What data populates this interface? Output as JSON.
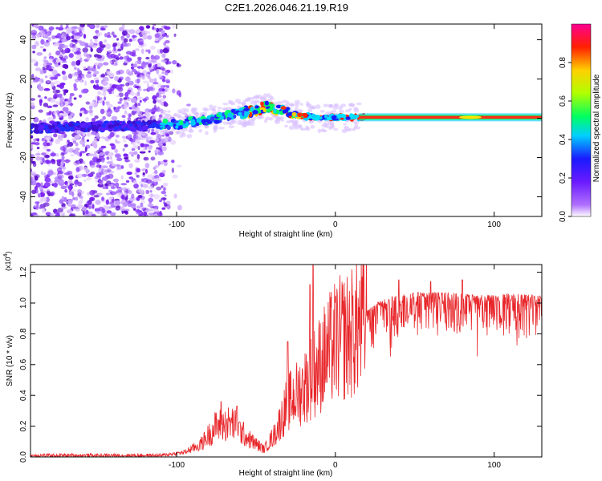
{
  "title": "C2E1.2026.046.21.19.R19",
  "chart_data": [
    {
      "type": "heatmap",
      "name": "spectrogram",
      "xlabel": "Height of straight line (km)",
      "ylabel": "Frequency (Hz)",
      "xlim": [
        -192,
        130
      ],
      "ylim": [
        -50,
        48
      ],
      "xticks": [
        -100,
        0,
        100
      ],
      "yticks": [
        -40,
        -20,
        0,
        20,
        40
      ],
      "colorbar": {
        "label": "Normalized spectral amplitude",
        "range": [
          0,
          1
        ],
        "ticks": [
          "0.0",
          "0.2",
          "0.4",
          "0.6",
          "0.8"
        ],
        "tick_values": [
          0,
          0.2,
          0.4,
          0.6,
          0.8
        ],
        "colors": [
          "#ffffff",
          "#9b30ff",
          "#1a1aff",
          "#00d0ff",
          "#00ff40",
          "#b0ff00",
          "#ffd000",
          "#ff2000",
          "#ff0090"
        ]
      },
      "ridge": [
        {
          "x": -192,
          "y": -5
        },
        {
          "x": -150,
          "y": -4
        },
        {
          "x": -120,
          "y": -4
        },
        {
          "x": -100,
          "y": -3
        },
        {
          "x": -80,
          "y": -1
        },
        {
          "x": -65,
          "y": 2
        },
        {
          "x": -50,
          "y": 4
        },
        {
          "x": -42,
          "y": 6
        },
        {
          "x": -35,
          "y": 4
        },
        {
          "x": -28,
          "y": 2
        },
        {
          "x": -20,
          "y": 1
        },
        {
          "x": -10,
          "y": 0.5
        },
        {
          "x": 0,
          "y": 0.5
        },
        {
          "x": 20,
          "y": 0.5
        },
        {
          "x": 130,
          "y": 0.5
        }
      ]
    },
    {
      "type": "line",
      "name": "snr",
      "xlabel": "Height of straight line (km)",
      "ylabel": "SNR (10 * v/v)",
      "yscale_label": "(x10",
      "yscale_exp": "4",
      "yscale_close": ")",
      "color": "#e8262a",
      "xlim": [
        -192,
        130
      ],
      "ylim": [
        0,
        1.25
      ],
      "xticks": [
        -100,
        0,
        100
      ],
      "yticks": [
        "0.0",
        "0.2",
        "0.4",
        "0.6",
        "0.8",
        "1.0",
        "1.2"
      ],
      "ytick_values": [
        0,
        0.2,
        0.4,
        0.6,
        0.8,
        1.0,
        1.2
      ],
      "envelope": [
        {
          "x": -192,
          "y": 0.01
        },
        {
          "x": -110,
          "y": 0.01
        },
        {
          "x": -95,
          "y": 0.03
        },
        {
          "x": -85,
          "y": 0.08
        },
        {
          "x": -75,
          "y": 0.2
        },
        {
          "x": -65,
          "y": 0.22
        },
        {
          "x": -55,
          "y": 0.12
        },
        {
          "x": -45,
          "y": 0.05
        },
        {
          "x": -38,
          "y": 0.15
        },
        {
          "x": -30,
          "y": 0.35
        },
        {
          "x": -20,
          "y": 0.45
        },
        {
          "x": -10,
          "y": 0.6
        },
        {
          "x": 0,
          "y": 0.75
        },
        {
          "x": 10,
          "y": 0.8
        },
        {
          "x": 20,
          "y": 0.9
        },
        {
          "x": 30,
          "y": 0.98
        },
        {
          "x": 50,
          "y": 1.02
        },
        {
          "x": 70,
          "y": 1.02
        },
        {
          "x": 90,
          "y": 1.0
        },
        {
          "x": 110,
          "y": 1.01
        },
        {
          "x": 130,
          "y": 1.0
        }
      ],
      "spikes": [
        {
          "x": -72,
          "y": 0.36
        },
        {
          "x": -62,
          "y": 0.33
        },
        {
          "x": -30,
          "y": 0.75
        },
        {
          "x": -16,
          "y": 1.12
        },
        {
          "x": -14,
          "y": 1.25
        },
        {
          "x": 40,
          "y": 1.15
        },
        {
          "x": 60,
          "y": 1.14
        },
        {
          "x": 80,
          "y": 1.15
        }
      ]
    }
  ]
}
